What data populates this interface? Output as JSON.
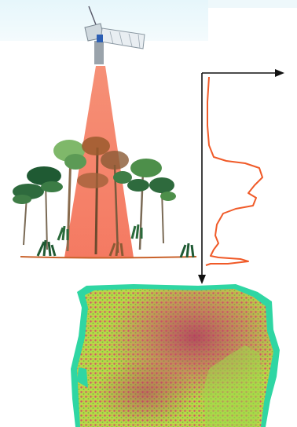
{
  "diagram": {
    "colors": {
      "beam": "#f4735a",
      "waveform": "#f05a28",
      "arrow": "#111111",
      "ground": "#c9622b",
      "tree_dark": "#1f5a33",
      "tree_mid": "#4d8f4a",
      "tree_light": "#7fb86a",
      "tree_brown": "#9a5b2d",
      "trunk": "#7a6a55",
      "map_low": "#2fd6a3",
      "map_mid": "#a8d646",
      "map_high": "#c2456b"
    },
    "icons": [
      "satellite-icon",
      "tree-icon",
      "fern-icon"
    ]
  }
}
